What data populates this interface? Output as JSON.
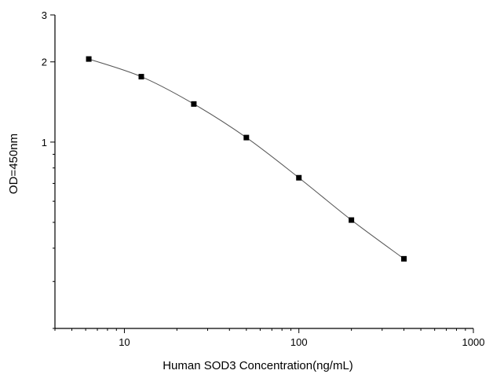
{
  "chart_data": {
    "type": "scatter",
    "xlabel": "Human SOD3 Concentration(ng/mL)",
    "ylabel": "OD=450nm",
    "x_scale": "log",
    "y_scale": "log",
    "xlim": [
      4,
      1000
    ],
    "ylim": [
      0.2,
      3
    ],
    "x_ticks": [
      10,
      100,
      1000
    ],
    "x_tick_labels": [
      "10",
      "100",
      "1000"
    ],
    "y_ticks": [
      1,
      2,
      3
    ],
    "y_tick_labels": [
      "1",
      "2",
      "3"
    ],
    "grid": false,
    "legend": "none",
    "series": [
      {
        "x": [
          6.25,
          12.5,
          25,
          50,
          100,
          200,
          400
        ],
        "y": [
          2.05,
          1.76,
          1.39,
          1.04,
          0.735,
          0.51,
          0.365
        ],
        "marker": "square",
        "fit_curve": true
      }
    ]
  }
}
